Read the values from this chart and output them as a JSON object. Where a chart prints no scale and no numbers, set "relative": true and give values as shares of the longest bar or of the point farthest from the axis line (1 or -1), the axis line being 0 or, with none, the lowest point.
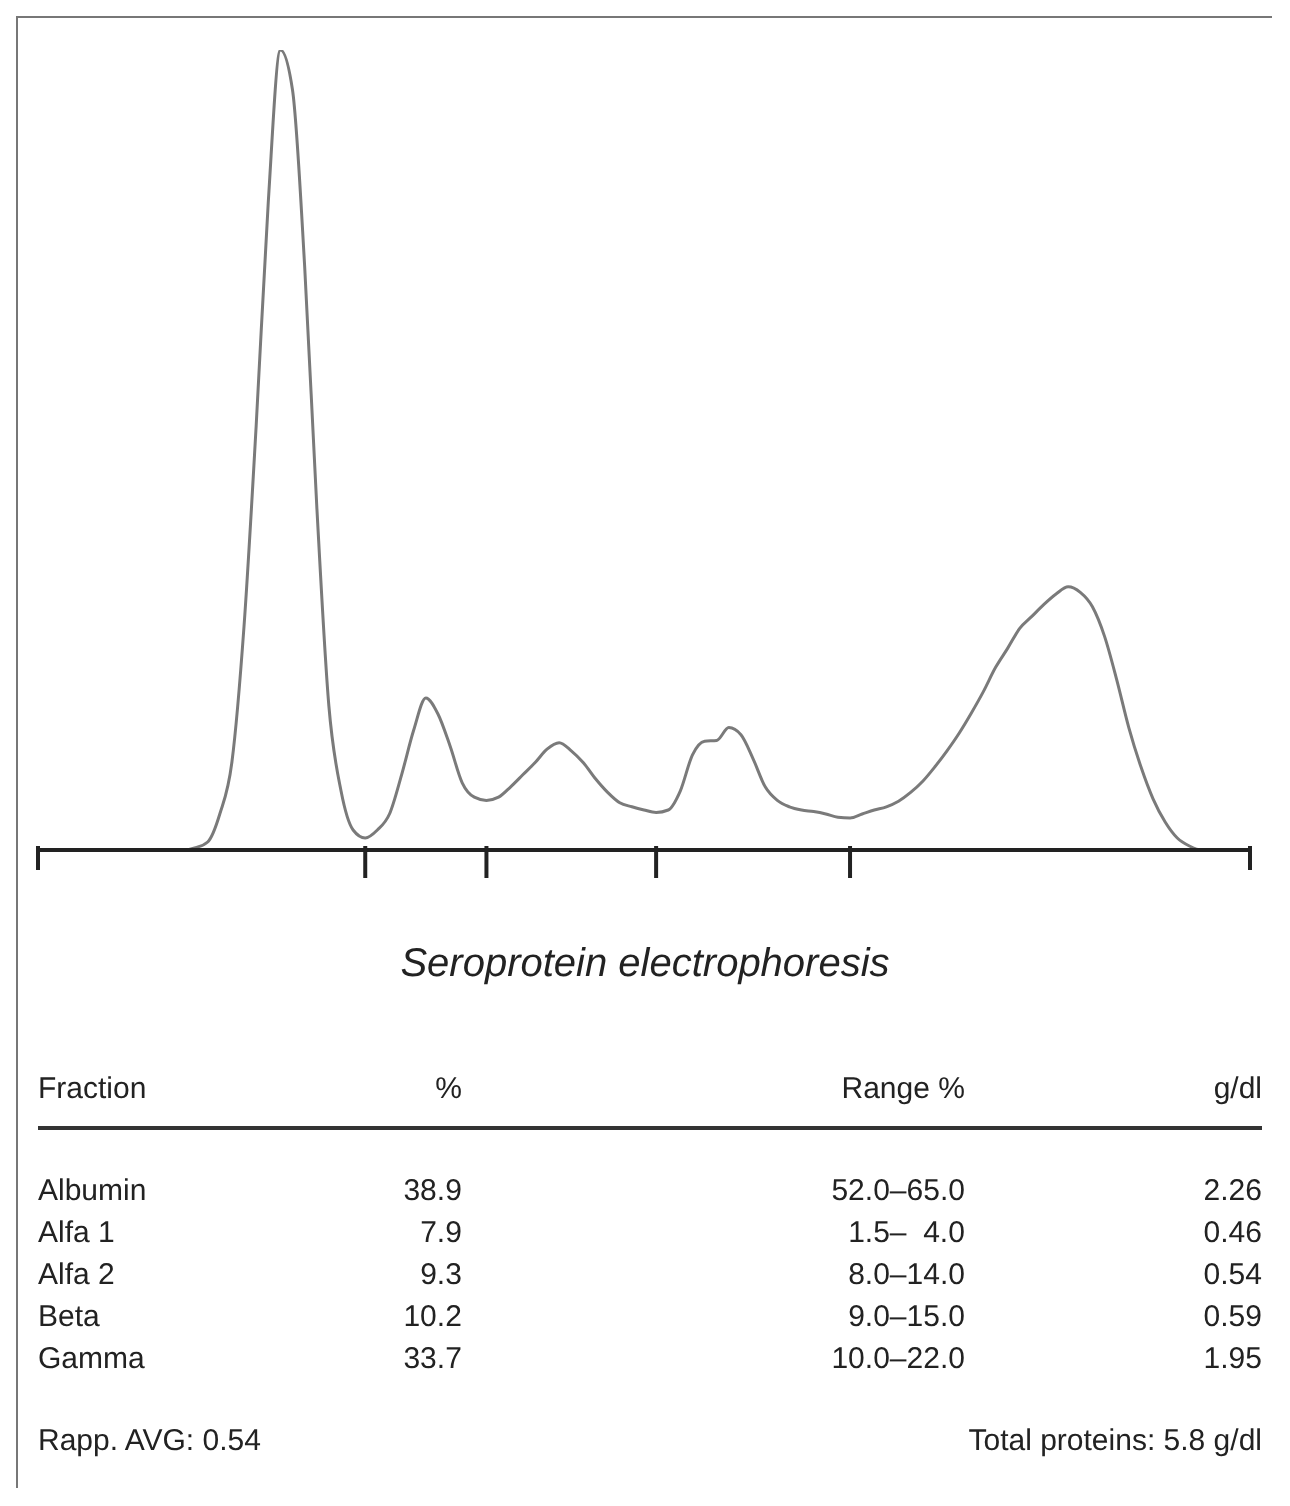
{
  "chart_data": {
    "type": "line",
    "title": "Seroprotein electrophoresis",
    "relative": true,
    "color": "#7a7a7a",
    "marker": "none",
    "categories": [
      null,
      null,
      null,
      null,
      null,
      null,
      null,
      null,
      null,
      null,
      null,
      null,
      null,
      null,
      null,
      null,
      null,
      null,
      null,
      null,
      null,
      null,
      null,
      null,
      null,
      null,
      null,
      null,
      null,
      null,
      null,
      null,
      null,
      null,
      null,
      null,
      null,
      null,
      null,
      null,
      null,
      null,
      null,
      null,
      null,
      null,
      null,
      null,
      null,
      null,
      null,
      null,
      null,
      null,
      null,
      null,
      null,
      null,
      null,
      null,
      null,
      null,
      null,
      null,
      null,
      null,
      null,
      null,
      null,
      null,
      null,
      null,
      null,
      null,
      null,
      null,
      null,
      null,
      null,
      null,
      null,
      null,
      null,
      null,
      null,
      null,
      null,
      null,
      null,
      null,
      null,
      null,
      null,
      null,
      null,
      null,
      null,
      null,
      null,
      null,
      null
    ],
    "values": [
      0,
      0,
      0,
      0,
      0,
      0,
      0,
      0,
      0,
      0,
      0,
      0,
      0,
      0.003,
      0.01,
      0.045,
      0.11,
      0.28,
      0.53,
      0.81,
      1,
      0.95,
      0.73,
      0.43,
      0.18,
      0.074,
      0.025,
      0.015,
      0.025,
      0.045,
      0.094,
      0.15,
      0.19,
      0.17,
      0.13,
      0.084,
      0.066,
      0.062,
      0.066,
      0.079,
      0.094,
      0.109,
      0.126,
      0.134,
      0.124,
      0.109,
      0.089,
      0.072,
      0.059,
      0.054,
      0.05,
      0.047,
      0.05,
      0.074,
      0.119,
      0.136,
      0.137,
      0.153,
      0.144,
      0.114,
      0.079,
      0.062,
      0.054,
      0.05,
      0.048,
      0.045,
      0.041,
      0.04,
      0.045,
      0.05,
      0.054,
      0.061,
      0.072,
      0.086,
      0.104,
      0.124,
      0.146,
      0.171,
      0.198,
      0.228,
      0.252,
      0.277,
      0.292,
      0.307,
      0.32,
      0.329,
      0.322,
      0.304,
      0.267,
      0.213,
      0.153,
      0.104,
      0.064,
      0.035,
      0.015,
      0.005,
      0,
      0,
      0,
      0,
      0
    ],
    "annotations": [
      "Fraction",
      "%",
      "Range %",
      "g/dl",
      "Albumin",
      "38.9",
      "52.0–65.0",
      "2.26",
      "Alfa 1",
      "7.9",
      "1.5–  4.0",
      "0.46",
      "Alfa 2",
      "9.3",
      "8.0–14.0",
      "0.54",
      "Beta",
      "10.2",
      "9.0–15.0",
      "0.59",
      "Gamma",
      "33.7",
      "10.0–22.0",
      "1.95",
      "Rapp. AVG: 0.54",
      "Total proteins: 5.8 g/dl"
    ]
  }
}
